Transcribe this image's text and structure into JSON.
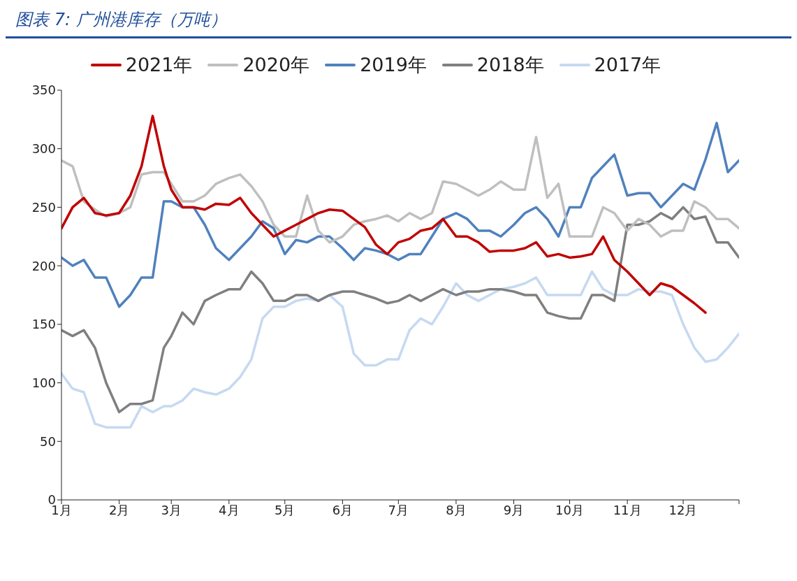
{
  "chart_data": {
    "type": "line",
    "title": "图表 7: 广州港库存（万吨）",
    "x": [
      "--01-01",
      "--01-07",
      "--01-13",
      "--01-19",
      "--01-25",
      "--02-01",
      "--02-07",
      "--02-13",
      "--02-19",
      "--02-25",
      "--03-01",
      "--03-07",
      "--03-13",
      "--03-19",
      "--03-25",
      "--04-01",
      "--04-07",
      "--04-13",
      "--04-19",
      "--04-25",
      "--05-01",
      "--05-07",
      "--05-13",
      "--05-19",
      "--05-25",
      "--06-01",
      "--06-07",
      "--06-13",
      "--06-19",
      "--06-25",
      "--07-01",
      "--07-07",
      "--07-13",
      "--07-19",
      "--07-25",
      "--08-01",
      "--08-07",
      "--08-13",
      "--08-19",
      "--08-25",
      "--09-01",
      "--09-07",
      "--09-13",
      "--09-19",
      "--09-25",
      "--10-01",
      "--10-07",
      "--10-13",
      "--10-19",
      "--10-25",
      "--11-01",
      "--11-07",
      "--11-13",
      "--11-19",
      "--11-25",
      "--12-01",
      "--12-07",
      "--12-13",
      "--12-19",
      "--12-25",
      "--12-31"
    ],
    "xlim": [
      "--01-01",
      "--12-31"
    ],
    "xticks": [
      {
        "value": "--01-01",
        "label": "1月"
      },
      {
        "value": "--02-01",
        "label": "2月"
      },
      {
        "value": "--03-01",
        "label": "3月"
      },
      {
        "value": "--04-01",
        "label": "4月"
      },
      {
        "value": "--05-01",
        "label": "5月"
      },
      {
        "value": "--06-01",
        "label": "6月"
      },
      {
        "value": "--07-01",
        "label": "7月"
      },
      {
        "value": "--08-01",
        "label": "8月"
      },
      {
        "value": "--09-01",
        "label": "9月"
      },
      {
        "value": "--10-01",
        "label": "10月"
      },
      {
        "value": "--11-01",
        "label": "11月"
      },
      {
        "value": "--12-01",
        "label": "12月"
      },
      {
        "value": "--12-31",
        "label": null
      }
    ],
    "ylim": [
      0,
      350
    ],
    "yticks": [
      0,
      50,
      100,
      150,
      200,
      250,
      300,
      350
    ],
    "grid": false,
    "legend": "top",
    "marker": "none",
    "line_style": "solid",
    "series": [
      {
        "name": "2021年",
        "color": "#c00000",
        "values": [
          232,
          250,
          258,
          245,
          243,
          245,
          260,
          285,
          328,
          285,
          265,
          250,
          250,
          248,
          253,
          252,
          258,
          245,
          235,
          225,
          230,
          235,
          240,
          245,
          248,
          247,
          240,
          233,
          218,
          210,
          220,
          223,
          230,
          232,
          240,
          225,
          225,
          220,
          212,
          213,
          213,
          215,
          220,
          208,
          210,
          207,
          208,
          210,
          225,
          205,
          195,
          185,
          175,
          185,
          182,
          175,
          168,
          160,
          null,
          null,
          null
        ]
      },
      {
        "name": "2020年",
        "color": "#bfbfbf",
        "values": [
          290,
          285,
          255,
          248,
          242,
          245,
          250,
          278,
          280,
          280,
          270,
          255,
          255,
          260,
          270,
          275,
          278,
          268,
          255,
          235,
          225,
          225,
          260,
          230,
          220,
          225,
          235,
          238,
          240,
          243,
          238,
          245,
          240,
          245,
          272,
          270,
          265,
          260,
          265,
          272,
          265,
          265,
          310,
          258,
          270,
          225,
          225,
          225,
          250,
          245,
          230,
          240,
          235,
          225,
          230,
          230,
          255,
          250,
          240,
          240,
          232
        ]
      },
      {
        "name": "2019年",
        "color": "#4f81bd",
        "values": [
          207,
          200,
          205,
          190,
          190,
          165,
          175,
          190,
          190,
          255,
          255,
          250,
          250,
          235,
          215,
          205,
          215,
          225,
          238,
          232,
          210,
          222,
          220,
          225,
          225,
          215,
          205,
          215,
          213,
          210,
          205,
          210,
          210,
          225,
          240,
          245,
          240,
          230,
          230,
          225,
          235,
          245,
          250,
          240,
          225,
          250,
          250,
          275,
          285,
          295,
          260,
          262,
          262,
          250,
          260,
          270,
          265,
          291,
          322,
          280,
          290
        ]
      },
      {
        "name": "2018年",
        "color": "#7f7f7f",
        "values": [
          145,
          140,
          145,
          130,
          100,
          75,
          82,
          82,
          85,
          130,
          140,
          160,
          150,
          170,
          175,
          180,
          180,
          195,
          185,
          170,
          170,
          175,
          175,
          170,
          175,
          178,
          178,
          175,
          172,
          168,
          170,
          175,
          170,
          175,
          180,
          175,
          178,
          178,
          180,
          180,
          178,
          175,
          175,
          160,
          157,
          155,
          155,
          175,
          175,
          170,
          235,
          235,
          238,
          245,
          240,
          250,
          240,
          242,
          220,
          220,
          207
        ]
      },
      {
        "name": "2017年",
        "color": "#c6d9f1",
        "values": [
          108,
          95,
          92,
          65,
          62,
          62,
          62,
          80,
          75,
          80,
          80,
          85,
          95,
          92,
          90,
          95,
          105,
          120,
          155,
          165,
          165,
          170,
          172,
          170,
          175,
          165,
          125,
          115,
          115,
          120,
          120,
          145,
          155,
          150,
          165,
          185,
          175,
          170,
          175,
          180,
          182,
          185,
          190,
          175,
          175,
          175,
          175,
          195,
          180,
          175,
          175,
          180,
          178,
          178,
          175,
          150,
          130,
          118,
          120,
          130,
          142
        ]
      }
    ]
  }
}
